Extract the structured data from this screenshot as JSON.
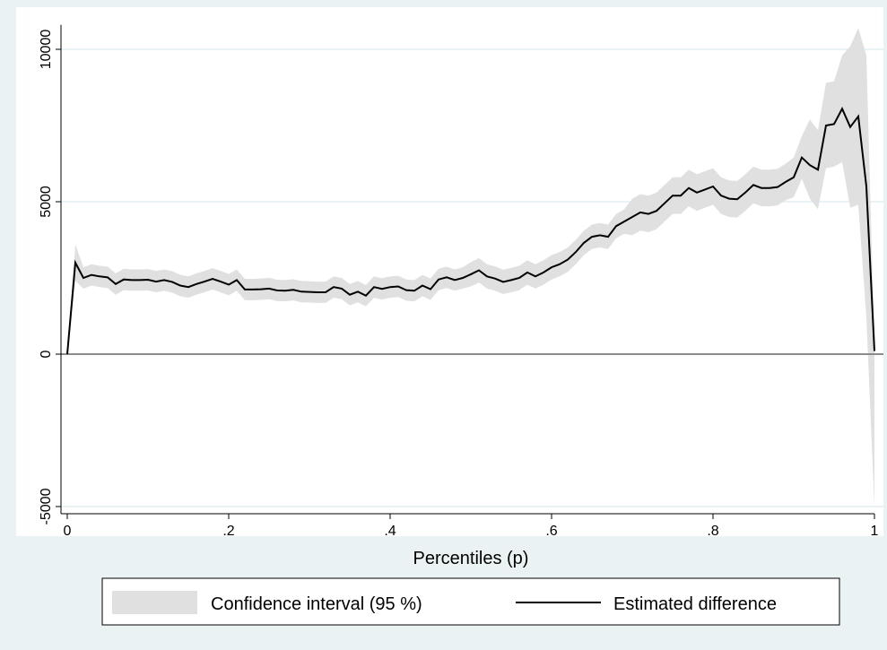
{
  "chart_data": {
    "type": "line-band",
    "x_label": "Percentiles (p)",
    "x": [
      0,
      0.01,
      0.02,
      0.03,
      0.04,
      0.05,
      0.06,
      0.07,
      0.08,
      0.09,
      0.1,
      0.11,
      0.12,
      0.13,
      0.14,
      0.15,
      0.16,
      0.17,
      0.18,
      0.19,
      0.2,
      0.21,
      0.22,
      0.23,
      0.24,
      0.25,
      0.26,
      0.27,
      0.28,
      0.29,
      0.3,
      0.31,
      0.32,
      0.33,
      0.34,
      0.35,
      0.36,
      0.37,
      0.38,
      0.39,
      0.4,
      0.41,
      0.42,
      0.43,
      0.44,
      0.45,
      0.46,
      0.47,
      0.48,
      0.49,
      0.5,
      0.51,
      0.52,
      0.53,
      0.54,
      0.55,
      0.56,
      0.57,
      0.58,
      0.59,
      0.6,
      0.61,
      0.62,
      0.63,
      0.64,
      0.65,
      0.66,
      0.67,
      0.68,
      0.69,
      0.7,
      0.71,
      0.72,
      0.73,
      0.74,
      0.75,
      0.76,
      0.77,
      0.78,
      0.79,
      0.8,
      0.81,
      0.82,
      0.83,
      0.84,
      0.85,
      0.86,
      0.87,
      0.88,
      0.89,
      0.9,
      0.91,
      0.92,
      0.93,
      0.94,
      0.95,
      0.96,
      0.97,
      0.98,
      0.99,
      1
    ],
    "series": [
      {
        "name": "Confidence interval (95 %)",
        "color": "#e0e0e0",
        "lower": [
          0,
          2400,
          2150,
          2250,
          2200,
          2170,
          1950,
          2100,
          2080,
          2080,
          2090,
          2030,
          2080,
          2020,
          1900,
          1850,
          1950,
          2030,
          2120,
          2030,
          1930,
          2080,
          1770,
          1770,
          1780,
          1800,
          1740,
          1730,
          1760,
          1700,
          1690,
          1680,
          1680,
          1850,
          1800,
          1600,
          1700,
          1570,
          1850,
          1790,
          1850,
          1870,
          1750,
          1730,
          1900,
          1780,
          2100,
          2170,
          2080,
          2150,
          2220,
          2350,
          2150,
          2080,
          1970,
          2030,
          2100,
          2280,
          2150,
          2280,
          2450,
          2550,
          2700,
          2950,
          3250,
          3450,
          3500,
          3450,
          3800,
          3950,
          3900,
          4050,
          4000,
          4100,
          4350,
          4600,
          4600,
          4850,
          4700,
          4800,
          4900,
          4600,
          4500,
          4480,
          4700,
          4950,
          4850,
          4850,
          4880,
          5050,
          5150,
          5750,
          5100,
          4750,
          6100,
          6150,
          6300,
          4800,
          4900,
          1200,
          -5000
        ],
        "upper": [
          0,
          3600,
          2850,
          2950,
          2900,
          2870,
          2650,
          2800,
          2780,
          2780,
          2790,
          2730,
          2780,
          2720,
          2600,
          2550,
          2650,
          2730,
          2820,
          2730,
          2630,
          2780,
          2470,
          2470,
          2480,
          2500,
          2440,
          2430,
          2460,
          2400,
          2390,
          2380,
          2380,
          2550,
          2500,
          2300,
          2400,
          2270,
          2550,
          2490,
          2550,
          2570,
          2450,
          2430,
          2600,
          2480,
          2800,
          2870,
          2780,
          2850,
          3020,
          3150,
          2950,
          2880,
          2770,
          2830,
          2900,
          3080,
          2950,
          3080,
          3250,
          3350,
          3500,
          3750,
          4050,
          4250,
          4300,
          4250,
          4600,
          4750,
          5100,
          5250,
          5200,
          5300,
          5550,
          5800,
          5800,
          6050,
          5900,
          6000,
          6100,
          5800,
          5700,
          5680,
          5900,
          6150,
          6050,
          6050,
          6080,
          6250,
          6450,
          7150,
          7700,
          7350,
          8900,
          8950,
          9800,
          10100,
          10700,
          9800,
          300
        ]
      },
      {
        "name": "Estimated difference",
        "color": "#000000",
        "values": [
          0,
          3000,
          2500,
          2600,
          2550,
          2520,
          2300,
          2450,
          2430,
          2430,
          2440,
          2380,
          2430,
          2370,
          2250,
          2200,
          2300,
          2380,
          2470,
          2380,
          2280,
          2430,
          2120,
          2120,
          2130,
          2150,
          2090,
          2080,
          2110,
          2050,
          2040,
          2030,
          2030,
          2200,
          2150,
          1950,
          2050,
          1920,
          2200,
          2140,
          2200,
          2220,
          2100,
          2080,
          2250,
          2130,
          2450,
          2520,
          2430,
          2500,
          2620,
          2750,
          2550,
          2480,
          2370,
          2430,
          2500,
          2680,
          2550,
          2680,
          2850,
          2950,
          3100,
          3350,
          3650,
          3850,
          3900,
          3850,
          4200,
          4350,
          4500,
          4650,
          4600,
          4700,
          4950,
          5200,
          5200,
          5450,
          5300,
          5400,
          5500,
          5200,
          5100,
          5080,
          5300,
          5550,
          5450,
          5450,
          5480,
          5650,
          5800,
          6450,
          6200,
          6050,
          7500,
          7550,
          8050,
          7450,
          7800,
          5500,
          100
        ]
      }
    ],
    "xlim": [
      0,
      1
    ],
    "xticks": [
      0,
      {
        "value": 0.2,
        "label": ".2"
      },
      {
        "value": 0.4,
        "label": ".4"
      },
      {
        "value": 0.6,
        "label": ".6"
      },
      {
        "value": 0.8,
        "label": ".8"
      },
      1
    ],
    "ylim": [
      -5300,
      10800
    ],
    "yticks": [
      -5000,
      0,
      5000,
      10000
    ],
    "grid": true,
    "zero_line": true,
    "legend": "bottom"
  }
}
